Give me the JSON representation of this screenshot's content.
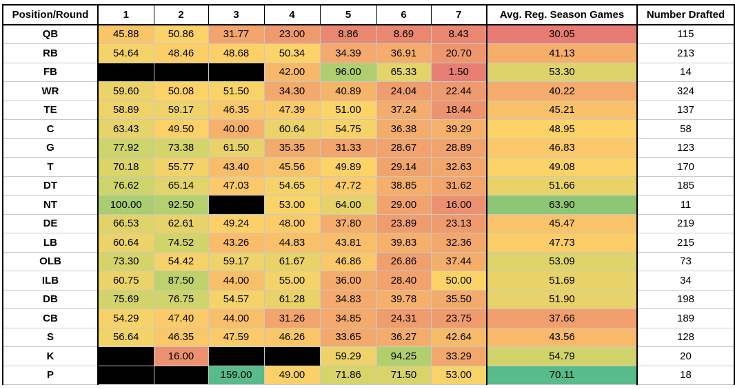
{
  "chart_data": {
    "type": "table",
    "columns": [
      "Position/Round",
      "1",
      "2",
      "3",
      "4",
      "5",
      "6",
      "7",
      "Avg. Reg. Season Games",
      "Number Drafted"
    ],
    "rows": [
      {
        "position": "QB",
        "rounds": [
          "45.88",
          "50.86",
          "31.77",
          "23.00",
          "8.86",
          "8.69",
          "8.43"
        ],
        "avg": "30.05",
        "drafted": "115"
      },
      {
        "position": "RB",
        "rounds": [
          "54.64",
          "48.46",
          "48.68",
          "50.34",
          "34.39",
          "36.91",
          "20.70"
        ],
        "avg": "41.13",
        "drafted": "213"
      },
      {
        "position": "FB",
        "rounds": [
          null,
          null,
          null,
          "42.00",
          "96.00",
          "65.33",
          "1.50"
        ],
        "avg": "53.30",
        "drafted": "14"
      },
      {
        "position": "WR",
        "rounds": [
          "59.60",
          "50.08",
          "51.50",
          "34.30",
          "40.89",
          "24.04",
          "22.44"
        ],
        "avg": "40.22",
        "drafted": "324"
      },
      {
        "position": "TE",
        "rounds": [
          "58.89",
          "59.17",
          "46.35",
          "47.39",
          "51.00",
          "37.24",
          "18.44"
        ],
        "avg": "45.21",
        "drafted": "137"
      },
      {
        "position": "C",
        "rounds": [
          "63.43",
          "49.50",
          "40.00",
          "60.64",
          "54.75",
          "36.38",
          "39.29"
        ],
        "avg": "48.95",
        "drafted": "58"
      },
      {
        "position": "G",
        "rounds": [
          "77.92",
          "73.38",
          "61.50",
          "35.35",
          "31.33",
          "28.67",
          "28.89"
        ],
        "avg": "46.83",
        "drafted": "123"
      },
      {
        "position": "T",
        "rounds": [
          "70.18",
          "55.77",
          "43.40",
          "45.56",
          "49.89",
          "29.14",
          "32.63"
        ],
        "avg": "49.08",
        "drafted": "170"
      },
      {
        "position": "DT",
        "rounds": [
          "76.62",
          "65.14",
          "47.03",
          "54.65",
          "47.72",
          "38.85",
          "31.62"
        ],
        "avg": "51.66",
        "drafted": "185"
      },
      {
        "position": "NT",
        "rounds": [
          "100.00",
          "92.50",
          null,
          "53.00",
          "64.00",
          "29.00",
          "16.00"
        ],
        "avg": "63.90",
        "drafted": "11"
      },
      {
        "position": "DE",
        "rounds": [
          "66.53",
          "62.61",
          "49.24",
          "48.00",
          "37.80",
          "23.89",
          "23.13"
        ],
        "avg": "45.47",
        "drafted": "219"
      },
      {
        "position": "LB",
        "rounds": [
          "60.64",
          "74.52",
          "43.26",
          "44.83",
          "43.81",
          "39.83",
          "32.36"
        ],
        "avg": "47.73",
        "drafted": "215"
      },
      {
        "position": "OLB",
        "rounds": [
          "73.30",
          "54.42",
          "59.17",
          "61.67",
          "46.86",
          "26.86",
          "37.44"
        ],
        "avg": "53.09",
        "drafted": "73"
      },
      {
        "position": "ILB",
        "rounds": [
          "60.75",
          "87.50",
          "44.00",
          "55.00",
          "36.00",
          "28.40",
          "50.00"
        ],
        "avg": "51.69",
        "drafted": "34"
      },
      {
        "position": "DB",
        "rounds": [
          "75.69",
          "76.75",
          "54.57",
          "61.28",
          "34.83",
          "39.78",
          "35.50"
        ],
        "avg": "51.90",
        "drafted": "198"
      },
      {
        "position": "CB",
        "rounds": [
          "54.29",
          "47.40",
          "44.00",
          "31.26",
          "34.85",
          "24.31",
          "23.75"
        ],
        "avg": "37.66",
        "drafted": "189"
      },
      {
        "position": "S",
        "rounds": [
          "56.64",
          "46.35",
          "47.59",
          "46.26",
          "33.65",
          "36.27",
          "42.64"
        ],
        "avg": "43.56",
        "drafted": "128"
      },
      {
        "position": "K",
        "rounds": [
          null,
          "16.00",
          null,
          null,
          "59.29",
          "94.25",
          "33.29"
        ],
        "avg": "54.79",
        "drafted": "20"
      },
      {
        "position": "P",
        "rounds": [
          null,
          null,
          "159.00",
          "49.00",
          "71.86",
          "71.50",
          "53.00"
        ],
        "avg": "70.11",
        "drafted": "18"
      }
    ],
    "blank_cell_color": "#000000",
    "heatmap_scales": {
      "rounds": {
        "stops": [
          {
            "value": 0,
            "color": "#e67c73"
          },
          {
            "value": 40,
            "color": "#f5b16b"
          },
          {
            "value": 50,
            "color": "#fdd368"
          },
          {
            "value": 80,
            "color": "#c9d46a"
          },
          {
            "value": 100,
            "color": "#a9cd70"
          },
          {
            "value": 160,
            "color": "#57bb8a"
          }
        ]
      },
      "avg": {
        "stops": [
          {
            "value": 30,
            "color": "#e67c73"
          },
          {
            "value": 40,
            "color": "#f4aa6c"
          },
          {
            "value": 49,
            "color": "#fdd368"
          },
          {
            "value": 55,
            "color": "#cfd46b"
          },
          {
            "value": 64,
            "color": "#8cc776"
          },
          {
            "value": 70,
            "color": "#57bb8a"
          }
        ]
      }
    }
  }
}
